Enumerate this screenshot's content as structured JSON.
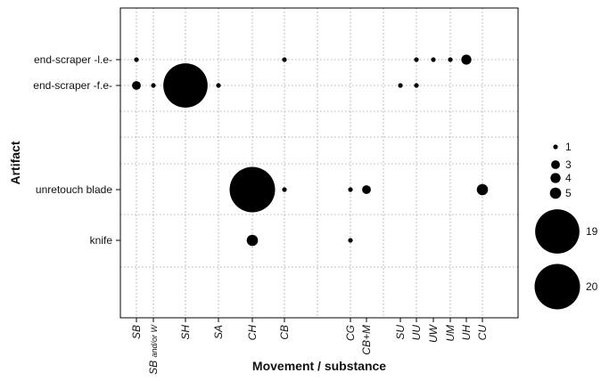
{
  "chart_data": {
    "type": "scatter",
    "subtype": "bubble",
    "xlabel": "Movement / substance",
    "ylabel": "Artifact",
    "x_categories": [
      {
        "key": "SB",
        "label": "SB"
      },
      {
        "key": "SB_or_W",
        "label": "SB and/or W",
        "main": "SB",
        "sub": "and/or W"
      },
      {
        "key": "SH",
        "label": "SH"
      },
      {
        "key": "SA",
        "label": "SA"
      },
      {
        "key": "CH",
        "label": "CH"
      },
      {
        "key": "CB",
        "label": "CB"
      },
      {
        "key": "CG",
        "label": "CG"
      },
      {
        "key": "CB+M",
        "label": "CB+M"
      },
      {
        "key": "SU",
        "label": "SU"
      },
      {
        "key": "UU",
        "label": "UU"
      },
      {
        "key": "UW",
        "label": "UW"
      },
      {
        "key": "UM",
        "label": "UM"
      },
      {
        "key": "UH",
        "label": "UH"
      },
      {
        "key": "CU",
        "label": "CU"
      }
    ],
    "y_categories": [
      "end-scraper -l.e-",
      "end-scraper -f.e-",
      "unretouch blade",
      "knife"
    ],
    "points": [
      {
        "artifact": "end-scraper -l.e-",
        "movement": "SB",
        "count": 1
      },
      {
        "artifact": "end-scraper -l.e-",
        "movement": "CB",
        "count": 1
      },
      {
        "artifact": "end-scraper -l.e-",
        "movement": "UU",
        "count": 1
      },
      {
        "artifact": "end-scraper -l.e-",
        "movement": "UW",
        "count": 1
      },
      {
        "artifact": "end-scraper -l.e-",
        "movement": "UM",
        "count": 1
      },
      {
        "artifact": "end-scraper -l.e-",
        "movement": "UH",
        "count": 4
      },
      {
        "artifact": "end-scraper -f.e-",
        "movement": "SB",
        "count": 3
      },
      {
        "artifact": "end-scraper -f.e-",
        "movement": "SB_or_W",
        "count": 1
      },
      {
        "artifact": "end-scraper -f.e-",
        "movement": "SH",
        "count": 19
      },
      {
        "artifact": "end-scraper -f.e-",
        "movement": "SA",
        "count": 1
      },
      {
        "artifact": "end-scraper -f.e-",
        "movement": "SU",
        "count": 1
      },
      {
        "artifact": "end-scraper -f.e-",
        "movement": "UU",
        "count": 1
      },
      {
        "artifact": "unretouch blade",
        "movement": "CH",
        "count": 20
      },
      {
        "artifact": "unretouch blade",
        "movement": "CB",
        "count": 1
      },
      {
        "artifact": "unretouch blade",
        "movement": "CG",
        "count": 1
      },
      {
        "artifact": "unretouch blade",
        "movement": "CB+M",
        "count": 3
      },
      {
        "artifact": "unretouch blade",
        "movement": "CU",
        "count": 5
      },
      {
        "artifact": "knife",
        "movement": "CH",
        "count": 5
      },
      {
        "artifact": "knife",
        "movement": "CG",
        "count": 1
      }
    ],
    "legend": {
      "title": "",
      "placement": "right",
      "values": [
        1,
        3,
        4,
        5,
        19,
        20
      ]
    },
    "grid": true,
    "marker_color": "#000000"
  }
}
